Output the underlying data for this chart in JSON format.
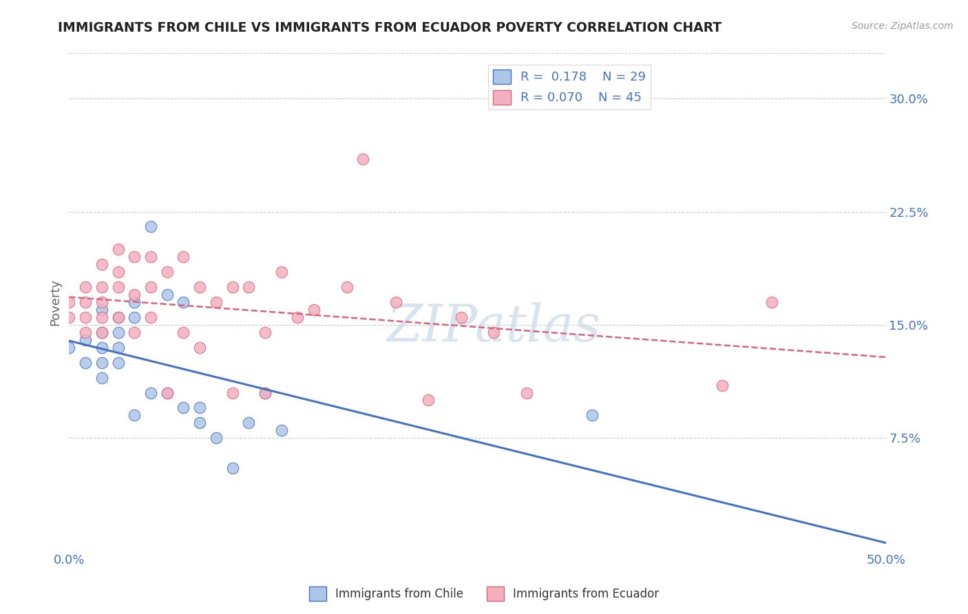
{
  "title": "IMMIGRANTS FROM CHILE VS IMMIGRANTS FROM ECUADOR POVERTY CORRELATION CHART",
  "source": "Source: ZipAtlas.com",
  "ylabel": "Poverty",
  "xlim": [
    0.0,
    0.5
  ],
  "ylim": [
    0.0,
    0.33
  ],
  "xtick_labels": [
    "0.0%",
    "50.0%"
  ],
  "ytick_labels": [
    "7.5%",
    "15.0%",
    "22.5%",
    "30.0%"
  ],
  "ytick_vals": [
    0.075,
    0.15,
    0.225,
    0.3
  ],
  "legend_r_chile": "0.178",
  "legend_n_chile": "29",
  "legend_r_ecuador": "0.070",
  "legend_n_ecuador": "45",
  "color_chile": "#adc6e8",
  "color_ecuador": "#f4afc0",
  "line_color_chile": "#4472c4",
  "line_color_ecuador": "#d9647a",
  "watermark": "ZIPatlas",
  "background_color": "#ffffff",
  "grid_color": "#cccccc",
  "title_color": "#222222",
  "label_color": "#4472c4",
  "chile_x": [
    0.0,
    0.01,
    0.01,
    0.02,
    0.02,
    0.02,
    0.02,
    0.02,
    0.03,
    0.03,
    0.03,
    0.03,
    0.04,
    0.04,
    0.04,
    0.05,
    0.05,
    0.06,
    0.06,
    0.07,
    0.07,
    0.08,
    0.08,
    0.09,
    0.1,
    0.11,
    0.12,
    0.13,
    0.32
  ],
  "chile_y": [
    0.135,
    0.14,
    0.125,
    0.16,
    0.145,
    0.135,
    0.125,
    0.115,
    0.155,
    0.145,
    0.135,
    0.125,
    0.165,
    0.155,
    0.09,
    0.215,
    0.105,
    0.17,
    0.105,
    0.165,
    0.095,
    0.095,
    0.085,
    0.075,
    0.055,
    0.085,
    0.105,
    0.08,
    0.09
  ],
  "ecuador_x": [
    0.0,
    0.0,
    0.01,
    0.01,
    0.01,
    0.01,
    0.02,
    0.02,
    0.02,
    0.02,
    0.02,
    0.03,
    0.03,
    0.03,
    0.03,
    0.04,
    0.04,
    0.04,
    0.05,
    0.05,
    0.05,
    0.06,
    0.06,
    0.07,
    0.07,
    0.08,
    0.08,
    0.09,
    0.1,
    0.1,
    0.11,
    0.12,
    0.12,
    0.13,
    0.14,
    0.15,
    0.17,
    0.18,
    0.2,
    0.22,
    0.24,
    0.26,
    0.28,
    0.4,
    0.43
  ],
  "ecuador_y": [
    0.165,
    0.155,
    0.175,
    0.165,
    0.155,
    0.145,
    0.19,
    0.175,
    0.165,
    0.155,
    0.145,
    0.2,
    0.185,
    0.175,
    0.155,
    0.195,
    0.17,
    0.145,
    0.195,
    0.175,
    0.155,
    0.185,
    0.105,
    0.195,
    0.145,
    0.175,
    0.135,
    0.165,
    0.175,
    0.105,
    0.175,
    0.145,
    0.105,
    0.185,
    0.155,
    0.16,
    0.175,
    0.26,
    0.165,
    0.1,
    0.155,
    0.145,
    0.105,
    0.11,
    0.165
  ]
}
